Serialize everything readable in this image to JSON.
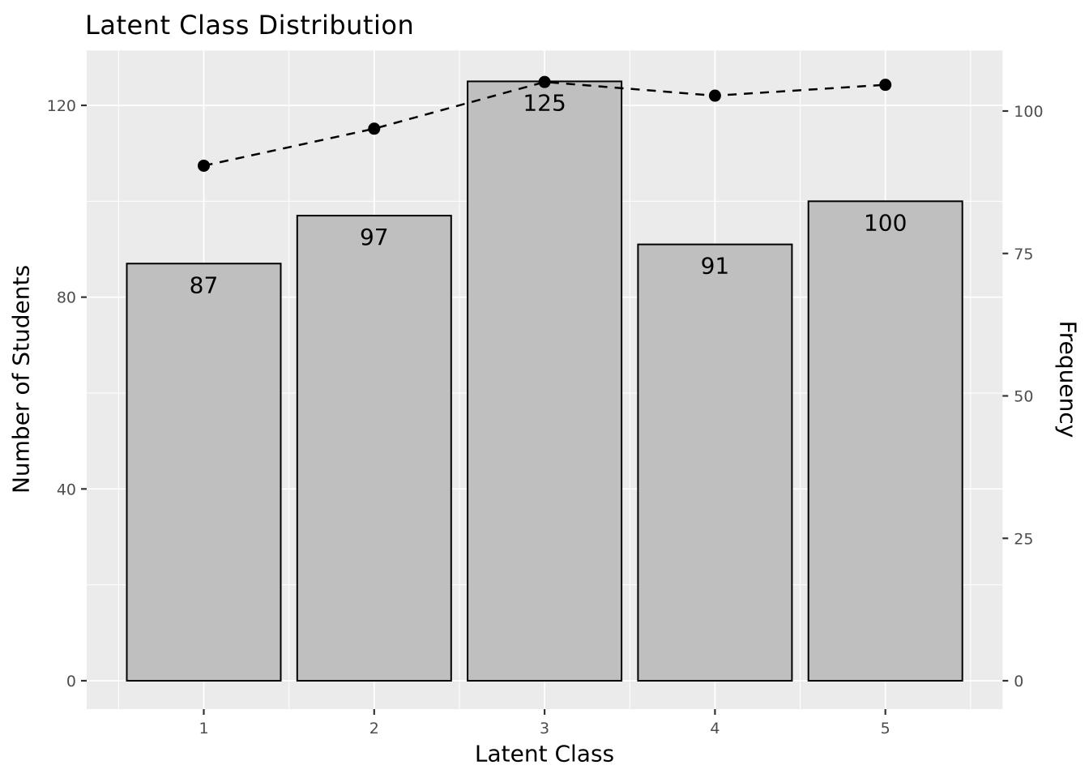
{
  "chart_data": {
    "type": "bar",
    "subtype": "bar-with-dashed-line-overlay",
    "title": "Latent Class Distribution",
    "xlabel": "Latent Class",
    "ylabel_left": "Number of Students",
    "ylabel_right": "Frequency",
    "categories": [
      "1",
      "2",
      "3",
      "4",
      "5"
    ],
    "series": [
      {
        "name": "Number of Students",
        "type": "bar",
        "axis": "left",
        "values": [
          87,
          97,
          125,
          91,
          100
        ],
        "value_labels": [
          "87",
          "97",
          "125",
          "91",
          "100"
        ]
      },
      {
        "name": "Frequency",
        "type": "line",
        "axis": "right",
        "line_style": "dashed",
        "marker": "filled-circle",
        "values": [
          90.4,
          96.9,
          105.1,
          102.7,
          104.6
        ]
      }
    ],
    "left_axis": {
      "ticks": [
        0,
        40,
        80,
        120
      ],
      "tick_labels": [
        "0",
        "40",
        "80",
        "120"
      ],
      "minor_ticks": [
        20,
        60,
        100
      ],
      "range_px_calibration": "0@y840 120@y130"
    },
    "right_axis": {
      "ticks": [
        0,
        25,
        50,
        75,
        100
      ],
      "tick_labels": [
        "0",
        "25",
        "50",
        "75",
        "100"
      ]
    },
    "x_axis": {
      "tick_labels": [
        "1",
        "2",
        "3",
        "4",
        "5"
      ]
    },
    "grid": true,
    "legend_position": "none",
    "colors": {
      "bar_fill": "#bfbfbf",
      "bar_stroke": "#000000",
      "line_color": "#000000",
      "point_color": "#000000",
      "panel_background": "#ebebeb",
      "gridline": "#ffffff",
      "tick_text": "#4d4d4d",
      "tick_mark": "#333333",
      "title_text": "#000000",
      "bar_label_text": "#000000"
    }
  }
}
